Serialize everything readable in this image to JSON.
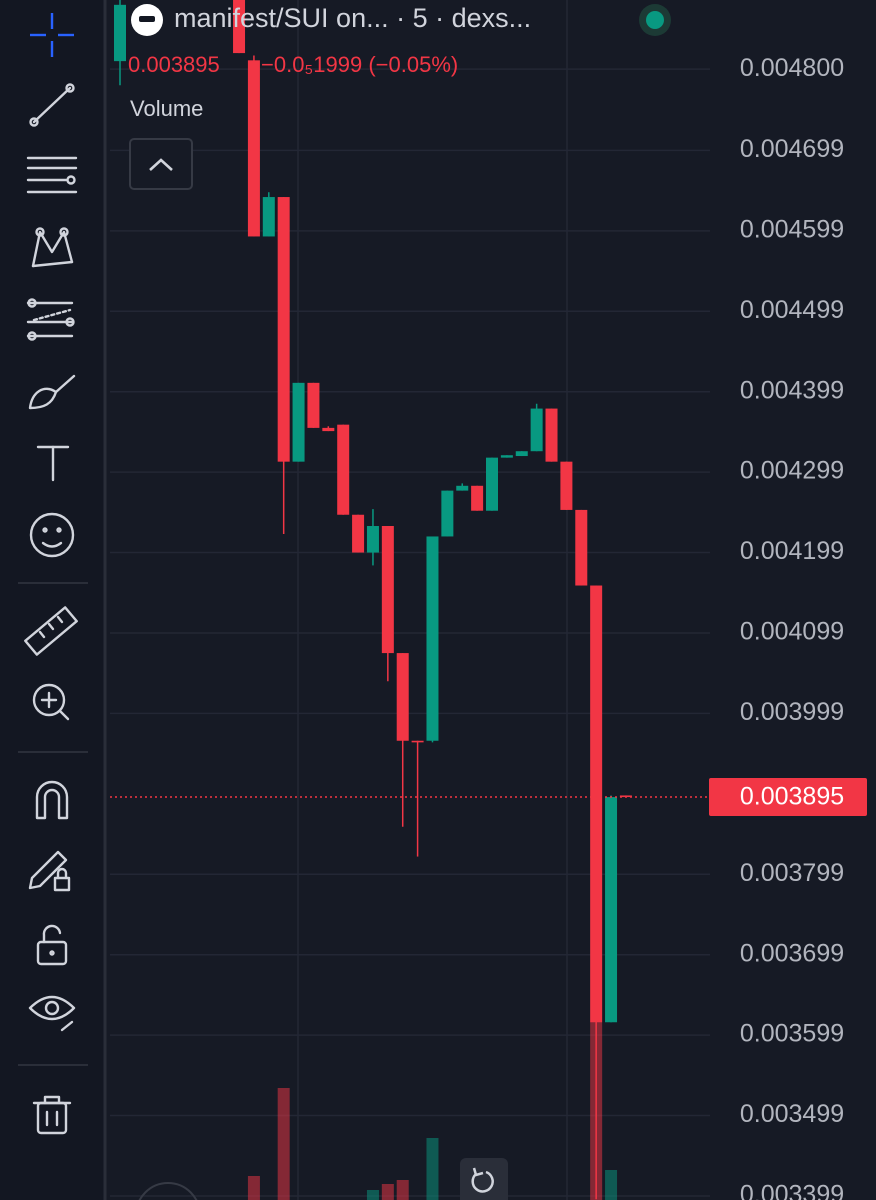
{
  "chart_data": {
    "type": "candlestick",
    "header": "manifest/SUI on...  · 5 · dexs...",
    "last_price": "0.003895",
    "change": "−0.0₅1999 (−0.05%)",
    "volume_label": "Volume",
    "up_color": "#089981",
    "down_color": "#f23645",
    "categories": [
      null,
      null,
      null,
      null,
      null,
      null,
      null,
      null,
      null,
      null,
      null,
      null,
      null,
      null,
      null,
      null,
      null,
      null,
      null,
      null,
      null,
      null,
      null,
      null,
      null,
      null,
      null,
      null,
      null,
      null,
      null,
      null,
      null,
      null,
      null
    ],
    "open": [
      0.00481,
      null,
      null,
      null,
      null,
      null,
      null,
      null,
      0.00489,
      0.004811,
      0.004592,
      0.004641,
      0.004312,
      0.00441,
      0.004354,
      0.004358,
      0.004246,
      0.004199,
      0.004232,
      0.004074,
      0.003965,
      0.003965,
      0.004219,
      0.004276,
      0.004282,
      0.004251,
      0.004317,
      0.004319,
      0.004325,
      0.004378,
      0.004312,
      0.004252,
      0.004158,
      0.003615,
      0.003897
    ],
    "high": [
      0.00489,
      null,
      null,
      null,
      null,
      null,
      null,
      null,
      0.00489,
      0.004817,
      0.004647,
      0.004641,
      0.00441,
      0.00441,
      0.004356,
      0.004358,
      0.004246,
      0.004253,
      0.004232,
      0.004074,
      0.003965,
      0.004219,
      0.004276,
      0.004285,
      0.004282,
      0.004317,
      0.00432,
      0.004325,
      0.004384,
      0.004378,
      0.004312,
      0.004252,
      0.004158,
      0.003897,
      0.003897
    ],
    "low": [
      0.00478,
      null,
      null,
      null,
      null,
      null,
      null,
      null,
      0.00482,
      0.004592,
      0.004592,
      0.004222,
      0.004312,
      0.004354,
      0.00435,
      0.004246,
      0.004199,
      0.004183,
      0.004039,
      0.003858,
      0.003821,
      0.003963,
      0.004219,
      0.004276,
      0.004251,
      0.004251,
      0.004317,
      0.004319,
      0.004325,
      0.004312,
      0.004252,
      0.004158,
      0.003395,
      0.003615,
      0.003895
    ],
    "close": [
      0.00488,
      null,
      null,
      null,
      null,
      null,
      null,
      null,
      0.00482,
      0.004592,
      0.004641,
      0.004312,
      0.00441,
      0.004354,
      0.00435,
      0.004246,
      0.004199,
      0.004232,
      0.004074,
      0.003965,
      0.003963,
      0.004219,
      0.004276,
      0.004282,
      0.004251,
      0.004317,
      0.00432,
      0.004325,
      0.004378,
      0.004312,
      0.004252,
      0.004158,
      0.003615,
      0.003895,
      0.003895
    ],
    "volume": [
      null,
      null,
      null,
      null,
      null,
      null,
      null,
      null,
      null,
      6,
      null,
      28,
      null,
      null,
      null,
      null,
      null,
      2.5,
      4,
      5,
      null,
      15.5,
      null,
      null,
      null,
      null,
      null,
      null,
      null,
      null,
      null,
      null,
      44.5,
      7.5,
      null
    ],
    "ylim": [
      0.003394,
      0.004886
    ],
    "yticks": [
      {
        "value": 0.0048,
        "label": "0.004800"
      },
      {
        "value": 0.004699,
        "label": "0.004699"
      },
      {
        "value": 0.004599,
        "label": "0.004599"
      },
      {
        "value": 0.004499,
        "label": "0.004499"
      },
      {
        "value": 0.004399,
        "label": "0.004399"
      },
      {
        "value": 0.004299,
        "label": "0.004299"
      },
      {
        "value": 0.004199,
        "label": "0.004199"
      },
      {
        "value": 0.004099,
        "label": "0.004099"
      },
      {
        "value": 0.003999,
        "label": "0.003999"
      },
      {
        "value": 0.003799,
        "label": "0.003799"
      },
      {
        "value": 0.003699,
        "label": "0.003699"
      },
      {
        "value": 0.003599,
        "label": "0.003599"
      },
      {
        "value": 0.003499,
        "label": "0.003499"
      },
      {
        "value": 0.003399,
        "label": "0.003399"
      }
    ],
    "current_price": {
      "value": 0.003895,
      "label": "0.003895"
    },
    "grid": true
  }
}
